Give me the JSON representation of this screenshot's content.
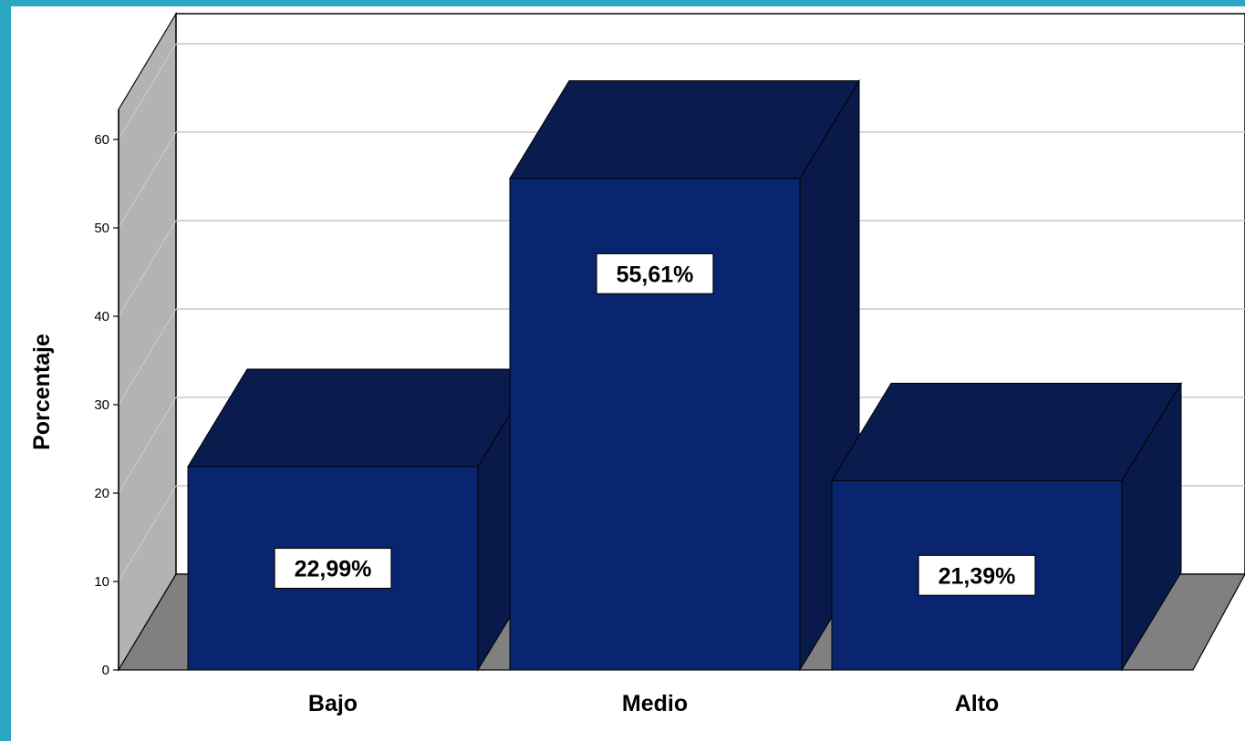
{
  "chart_data": {
    "type": "bar",
    "categories": [
      "Bajo",
      "Medio",
      "Alto"
    ],
    "values": [
      22.99,
      55.61,
      21.39
    ],
    "data_labels": [
      "22,99%",
      "55,61%",
      "21,39%"
    ],
    "ylabel": "Porcentaje",
    "xlabel": "",
    "ylim": [
      0,
      60
    ],
    "yticks": [
      0,
      10,
      20,
      30,
      40,
      50,
      60
    ],
    "grid": true,
    "style": "3d",
    "colors": {
      "bar_front": "#0a2570",
      "bar_top": "#0a1c4d",
      "bar_side": "#08194a",
      "floor": "#808080",
      "wall": "#b3b3b3",
      "frame_accent": "#2aa6c2"
    }
  }
}
